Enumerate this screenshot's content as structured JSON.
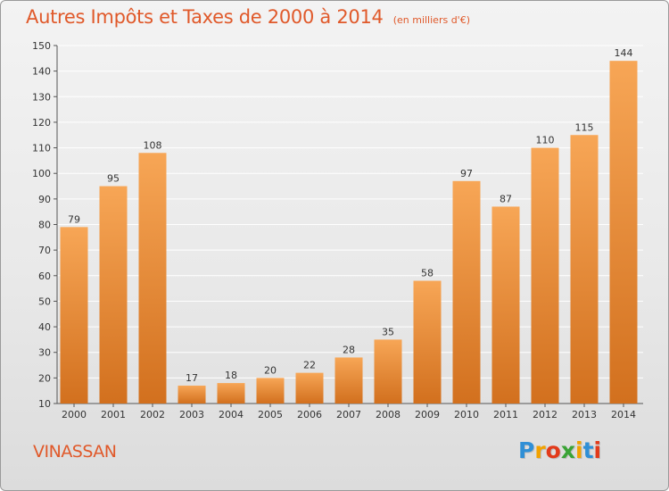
{
  "header": {
    "title": "Autres Impôts et Taxes de 2000 à 2014",
    "unit": "(en milliers d'€)"
  },
  "footer": {
    "commune": "VINASSAN",
    "logo": "Proxiti",
    "logo_letters": [
      {
        "ch": "P",
        "color": "#2f8fd6"
      },
      {
        "ch": "r",
        "color": "#f2a200"
      },
      {
        "ch": "o",
        "color": "#e23a1a"
      },
      {
        "ch": "x",
        "color": "#3aa335"
      },
      {
        "ch": "i",
        "color": "#f2a200"
      },
      {
        "ch": "t",
        "color": "#2f8fd6"
      },
      {
        "ch": "i",
        "color": "#e23a1a"
      }
    ]
  },
  "colors": {
    "title": "#e0592a",
    "bar_top": "#f7a656",
    "bar_bottom": "#d2701e",
    "grid": "#ffffff",
    "text": "#333333"
  },
  "chart_data": {
    "type": "bar",
    "title": "Autres Impôts et Taxes de 2000 à 2014",
    "xlabel": "",
    "ylabel": "",
    "categories": [
      "2000",
      "2001",
      "2002",
      "2003",
      "2004",
      "2005",
      "2006",
      "2007",
      "2008",
      "2009",
      "2010",
      "2011",
      "2012",
      "2013",
      "2014"
    ],
    "values": [
      79,
      95,
      108,
      17,
      18,
      20,
      22,
      28,
      35,
      58,
      97,
      87,
      110,
      115,
      144
    ],
    "ylim": [
      10,
      150
    ],
    "yticks": [
      10,
      20,
      30,
      40,
      50,
      60,
      70,
      80,
      90,
      100,
      110,
      120,
      130,
      140,
      150
    ],
    "grid": true
  }
}
